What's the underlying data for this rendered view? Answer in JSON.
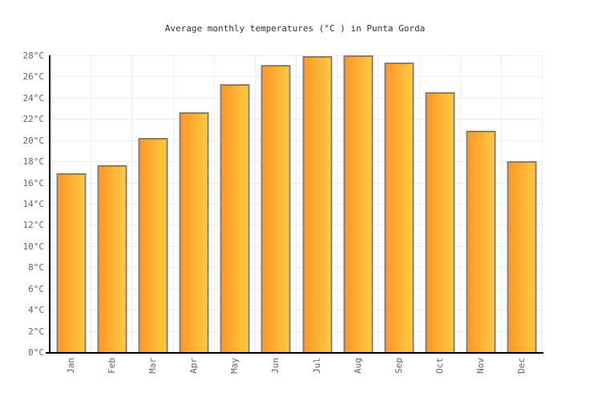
{
  "page": {
    "background": "#ffffff"
  },
  "chart_data": {
    "type": "bar",
    "title": "Average monthly temperatures (°C ) in Punta Gorda",
    "categories": [
      "Jan",
      "Feb",
      "Mar",
      "Apr",
      "May",
      "Jun",
      "Jul",
      "Aug",
      "Sep",
      "Oct",
      "Nov",
      "Dec"
    ],
    "values": [
      16.9,
      17.6,
      20.2,
      22.6,
      25.3,
      27.1,
      27.9,
      28,
      27.3,
      24.5,
      20.9,
      18
    ],
    "unit": "°C",
    "xlabel": "",
    "ylabel": "",
    "ylim": [
      0,
      28
    ],
    "ytick_step": 2,
    "ytick_suffix": "°C",
    "grid": true,
    "legend": false,
    "bar_gradient_left": "#fd9728",
    "bar_gradient_right": "#ffc93f",
    "bar_border_color": "#808080",
    "gridline_color": "#eeeeee",
    "axis_color": "#000000",
    "tick_label_color": "#666666",
    "title_color": "#333333"
  }
}
